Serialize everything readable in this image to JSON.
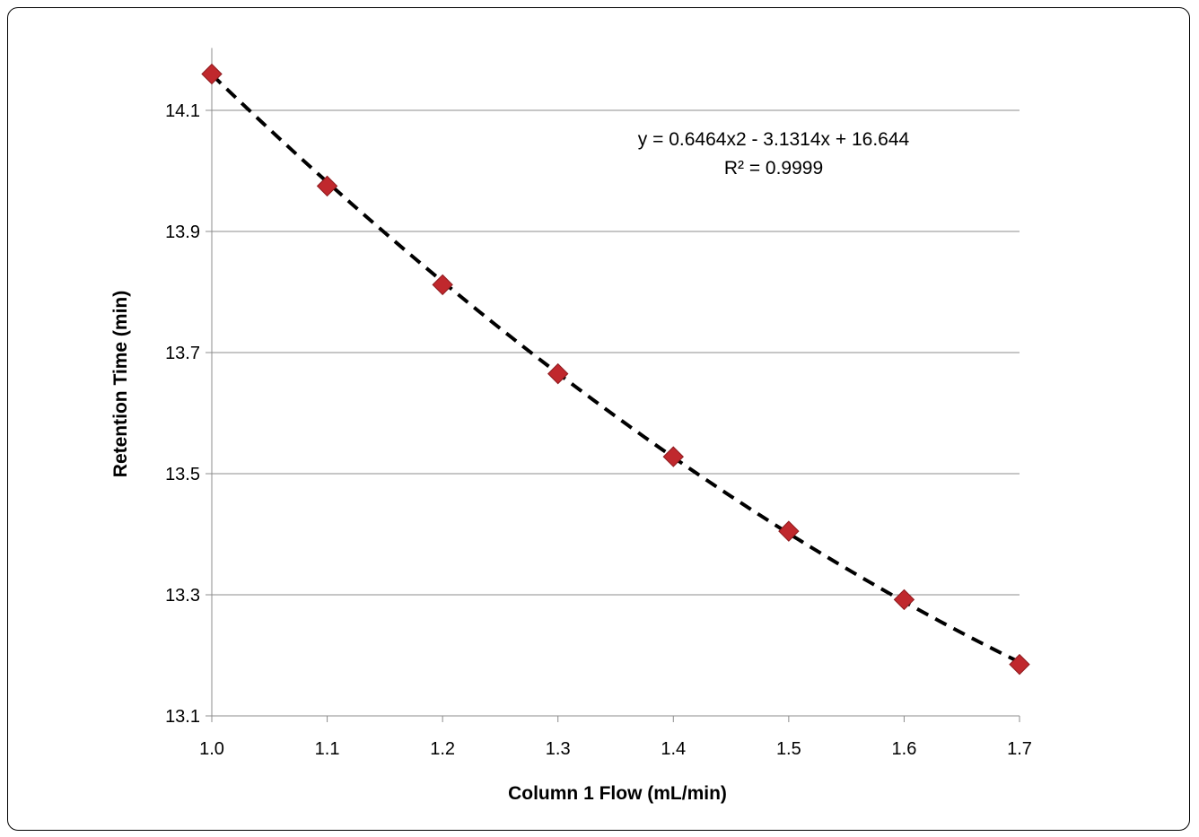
{
  "chart_data": {
    "type": "scatter",
    "xlabel": "Column 1 Flow (mL/min)",
    "ylabel": "Retention Time (min)",
    "xlim": [
      1.0,
      1.7
    ],
    "ylim": [
      13.1,
      14.2
    ],
    "xticks": [
      "1.0",
      "1.1",
      "1.2",
      "1.3",
      "1.4",
      "1.5",
      "1.6",
      "1.7"
    ],
    "yticks": [
      "13.1",
      "13.3",
      "13.5",
      "13.7",
      "13.9",
      "14.1"
    ],
    "grid": "horizontal",
    "series": [
      {
        "x": [
          1.0,
          1.1,
          1.2,
          1.3,
          1.4,
          1.5,
          1.6,
          1.7
        ],
        "y": [
          14.16,
          13.975,
          13.812,
          13.665,
          13.528,
          13.405,
          13.292,
          13.185
        ],
        "marker": "diamond",
        "color": "#C0282D"
      }
    ],
    "trendline": {
      "type": "polynomial",
      "order": 2,
      "coefficients": [
        0.6464,
        -3.1314,
        16.644
      ],
      "style": "dashed",
      "color": "#000000"
    },
    "annotations": {
      "equation": "y = 0.6464x2 - 3.1314x + 16.644",
      "r_squared": "R² = 0.9999"
    }
  }
}
